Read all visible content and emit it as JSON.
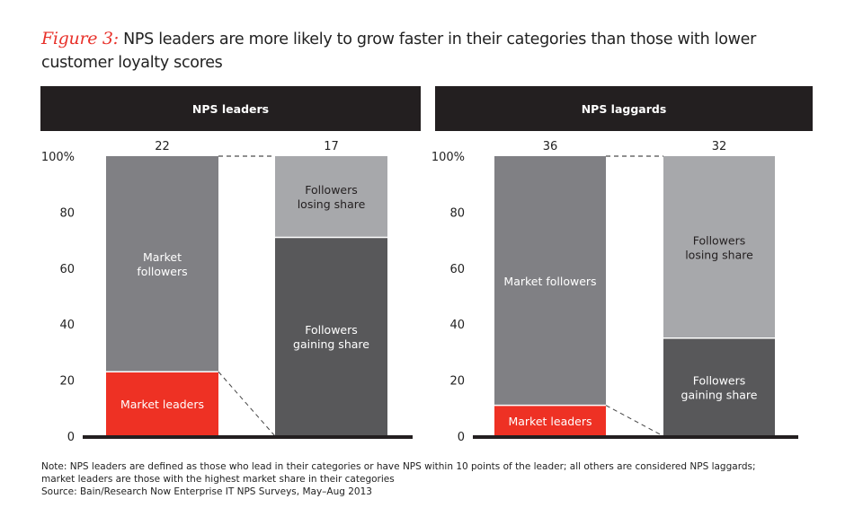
{
  "title": {
    "figure_label": "Figure 3:",
    "text": "NPS leaders are more likely to grow faster in their categories than those with lower customer loyalty scores"
  },
  "note": {
    "line1": "Note: NPS leaders are defined as those who lead in their categories or have NPS within 10 points of the leader; all others are considered NPS laggards;",
    "line2": "market leaders are those with the highest market share in their categories",
    "source": "Source: Bain/Research Now Enterprise IT NPS Surveys, May–Aug 2013"
  },
  "colors": {
    "market_leaders": "#ee3124",
    "market_followers": "#808084",
    "followers_losing": "#a7a8ab",
    "followers_gaining": "#58585a",
    "header": "#231f20"
  },
  "chart_data": [
    {
      "type": "bar",
      "stacked": true,
      "title": "NPS leaders",
      "ylim": [
        0,
        100
      ],
      "yticks": [
        "0",
        "20",
        "40",
        "60",
        "80",
        "100%"
      ],
      "bars": [
        {
          "total_label": "22",
          "segments": [
            {
              "name": "Market leaders",
              "value": 23,
              "color": "#ee3124"
            },
            {
              "name": "Market followers",
              "value": 77,
              "color": "#808084"
            }
          ]
        },
        {
          "total_label": "17",
          "segments": [
            {
              "name": "Followers gaining share",
              "value": 71,
              "color": "#58585a"
            },
            {
              "name": "Followers losing share",
              "value": 29,
              "color": "#a7a8ab"
            }
          ]
        }
      ]
    },
    {
      "type": "bar",
      "stacked": true,
      "title": "NPS laggards",
      "ylim": [
        0,
        100
      ],
      "yticks": [
        "0",
        "20",
        "40",
        "60",
        "80",
        "100%"
      ],
      "bars": [
        {
          "total_label": "36",
          "segments": [
            {
              "name": "Market leaders",
              "value": 11,
              "color": "#ee3124"
            },
            {
              "name": "Market followers",
              "value": 89,
              "color": "#808084"
            }
          ]
        },
        {
          "total_label": "32",
          "segments": [
            {
              "name": "Followers gaining share",
              "value": 35,
              "color": "#58585a"
            },
            {
              "name": "Followers losing share",
              "value": 65,
              "color": "#a7a8ab"
            }
          ]
        }
      ]
    }
  ]
}
